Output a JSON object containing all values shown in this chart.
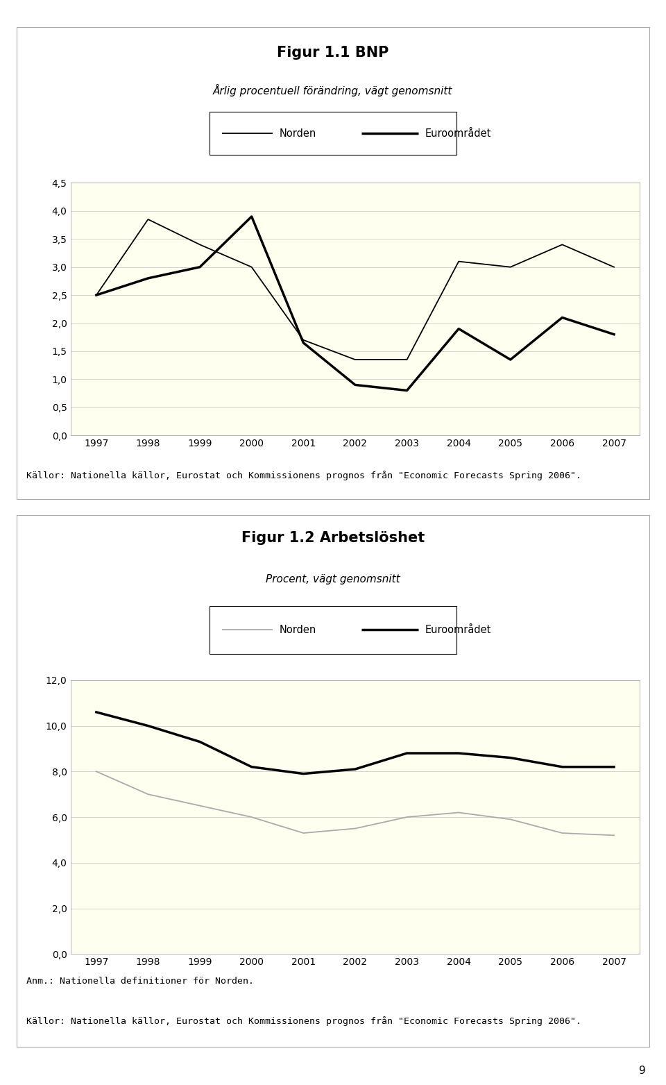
{
  "years": [
    1997,
    1998,
    1999,
    2000,
    2001,
    2002,
    2003,
    2004,
    2005,
    2006,
    2007
  ],
  "fig1": {
    "title": "Figur 1.1 BNP",
    "subtitle": "Årlig procentuell förändring, vägt genomsnitt",
    "norden": [
      2.5,
      3.85,
      3.4,
      3.0,
      1.7,
      1.35,
      1.35,
      3.1,
      3.0,
      3.4,
      3.0
    ],
    "euro": [
      2.5,
      2.8,
      3.0,
      3.9,
      1.65,
      0.9,
      0.8,
      1.9,
      1.35,
      2.1,
      1.8
    ],
    "ylim": [
      0.0,
      4.5
    ],
    "yticks": [
      0.0,
      0.5,
      1.0,
      1.5,
      2.0,
      2.5,
      3.0,
      3.5,
      4.0,
      4.5
    ],
    "source": "Källor: Nationella källor, Eurostat och Kommissionens prognos från \"Economic Forecasts Spring 2006\"."
  },
  "fig2": {
    "title": "Figur 1.2 Arbetslöshet",
    "subtitle": "Procent, vägt genomsnitt",
    "norden": [
      8.0,
      7.0,
      6.5,
      6.0,
      5.3,
      5.5,
      6.0,
      6.2,
      5.9,
      5.3,
      5.2
    ],
    "euro": [
      10.6,
      10.0,
      9.3,
      8.2,
      7.9,
      8.1,
      8.8,
      8.8,
      8.6,
      8.2,
      8.2
    ],
    "ylim": [
      0.0,
      12.0
    ],
    "yticks": [
      0.0,
      2.0,
      4.0,
      6.0,
      8.0,
      10.0,
      12.0
    ],
    "anm": "Anm.: Nationella definitioner för Norden.",
    "source": "Källor: Nationella källor, Eurostat och Kommissionens prognos från \"Economic Forecasts Spring 2006\"."
  },
  "norden_color_fig1": "#000000",
  "euro_color_fig1": "#000000",
  "norden_lw_fig1": 1.3,
  "euro_lw_fig1": 2.5,
  "norden_color_fig2": "#aaaaaa",
  "euro_color_fig2": "#000000",
  "norden_lw_fig2": 1.3,
  "euro_lw_fig2": 2.5,
  "bg_color": "#fffff0",
  "legend_label_norden": "Norden",
  "legend_label_euro": "Euroområdet",
  "page_number": "9",
  "source_font_size": 9.5,
  "title_fontsize": 15,
  "subtitle_fontsize": 11,
  "tick_fontsize": 10,
  "legend_fontsize": 10.5
}
